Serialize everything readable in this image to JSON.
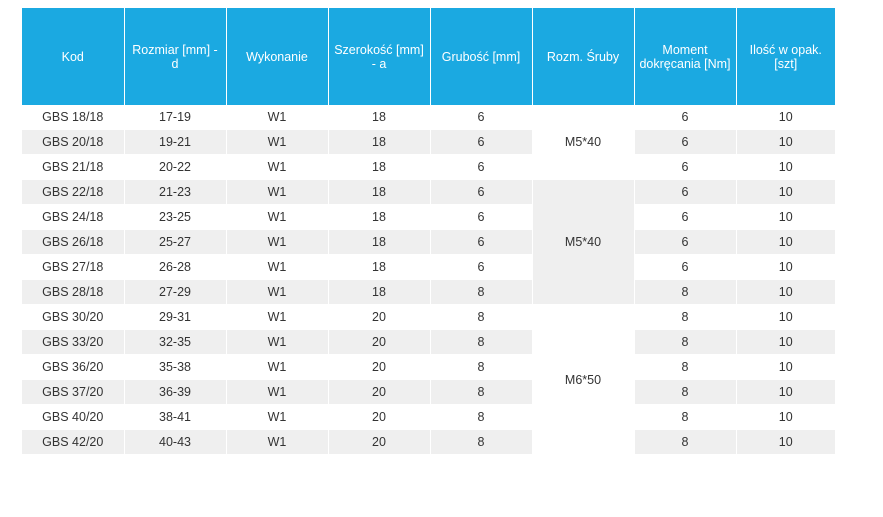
{
  "table": {
    "headers": [
      "Kod",
      "Rozmiar [mm] - d",
      "Wykonanie",
      "Szerokość [mm] - a",
      "Grubość [mm]",
      "Rozm. Śruby",
      "Moment dokręcania [Nm]",
      "Ilość w opak. [szt]"
    ],
    "rows": [
      {
        "kod": "GBS 18/18",
        "rozmiar": "17-19",
        "wykonanie": "W1",
        "szerokosc": "18",
        "grubosc": "6",
        "moment": "6",
        "ilosc": "10"
      },
      {
        "kod": "GBS 20/18",
        "rozmiar": "19-21",
        "wykonanie": "W1",
        "szerokosc": "18",
        "grubosc": "6",
        "moment": "6",
        "ilosc": "10"
      },
      {
        "kod": "GBS 21/18",
        "rozmiar": "20-22",
        "wykonanie": "W1",
        "szerokosc": "18",
        "grubosc": "6",
        "moment": "6",
        "ilosc": "10"
      },
      {
        "kod": "GBS 22/18",
        "rozmiar": "21-23",
        "wykonanie": "W1",
        "szerokosc": "18",
        "grubosc": "6",
        "moment": "6",
        "ilosc": "10"
      },
      {
        "kod": "GBS 24/18",
        "rozmiar": "23-25",
        "wykonanie": "W1",
        "szerokosc": "18",
        "grubosc": "6",
        "moment": "6",
        "ilosc": "10"
      },
      {
        "kod": "GBS 26/18",
        "rozmiar": "25-27",
        "wykonanie": "W1",
        "szerokosc": "18",
        "grubosc": "6",
        "moment": "6",
        "ilosc": "10"
      },
      {
        "kod": "GBS 27/18",
        "rozmiar": "26-28",
        "wykonanie": "W1",
        "szerokosc": "18",
        "grubosc": "6",
        "moment": "6",
        "ilosc": "10"
      },
      {
        "kod": "GBS 28/18",
        "rozmiar": "27-29",
        "wykonanie": "W1",
        "szerokosc": "18",
        "grubosc": "8",
        "moment": "8",
        "ilosc": "10"
      },
      {
        "kod": "GBS 30/20",
        "rozmiar": "29-31",
        "wykonanie": "W1",
        "szerokosc": "20",
        "grubosc": "8",
        "moment": "8",
        "ilosc": "10"
      },
      {
        "kod": "GBS  33/20",
        "rozmiar": "32-35",
        "wykonanie": "W1",
        "szerokosc": "20",
        "grubosc": "8",
        "moment": "8",
        "ilosc": "10"
      },
      {
        "kod": "GBS  36/20",
        "rozmiar": "35-38",
        "wykonanie": "W1",
        "szerokosc": "20",
        "grubosc": "8",
        "moment": "8",
        "ilosc": "10"
      },
      {
        "kod": "GBS  37/20",
        "rozmiar": "36-39",
        "wykonanie": "W1",
        "szerokosc": "20",
        "grubosc": "8",
        "moment": "8",
        "ilosc": "10"
      },
      {
        "kod": "GBS 40/20",
        "rozmiar": "38-41",
        "wykonanie": "W1",
        "szerokosc": "20",
        "grubosc": "8",
        "moment": "8",
        "ilosc": "10"
      },
      {
        "kod": "GBS  42/20",
        "rozmiar": "40-43",
        "wykonanie": "W1",
        "szerokosc": "20",
        "grubosc": "8",
        "moment": "8",
        "ilosc": "10"
      }
    ],
    "screw_groups": [
      {
        "label": "M5*40",
        "rows": 3
      },
      {
        "label": "M5*40",
        "rows": 5
      },
      {
        "label": "M6*50",
        "rows": 6
      }
    ]
  },
  "colors": {
    "header_bg": "#1ba9e1",
    "stripe": "#efefef"
  }
}
